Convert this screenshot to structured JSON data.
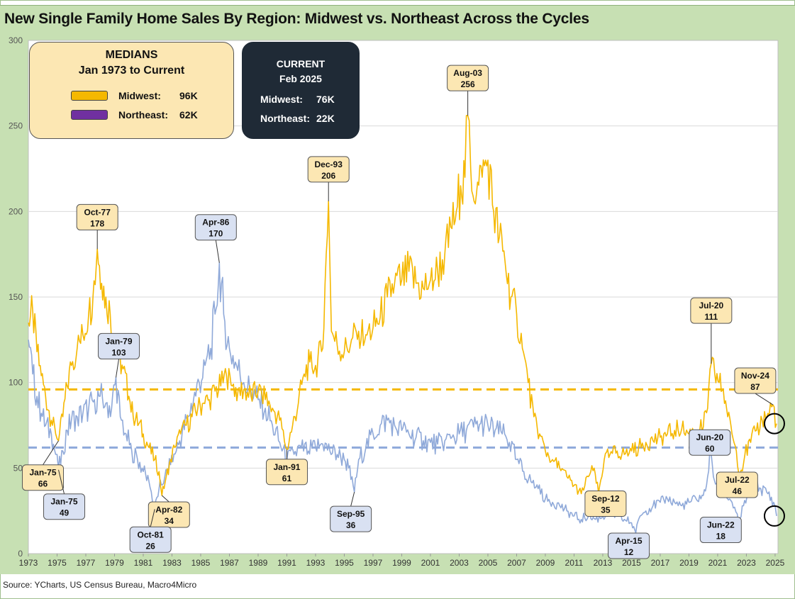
{
  "title": "New Single Family Home Sales By Region: Midwest vs. Northeast Across the Cycles",
  "source": "Source: YCharts, US Census Bureau, Macro4Micro",
  "medians_box": {
    "heading1": "MEDIANS",
    "heading2": "Jan 1973 to Current",
    "midwest_label": "Midwest:",
    "midwest_value": "96K",
    "northeast_label": "Northeast:",
    "northeast_value": "62K"
  },
  "current_box": {
    "heading1": "CURRENT",
    "heading2": "Feb 2025",
    "midwest_label": "Midwest:",
    "midwest_value": "76K",
    "northeast_label": "Northeast:",
    "northeast_value": "22K"
  },
  "colors": {
    "midwest": "#f5b800",
    "northeast": "#8fa9d9",
    "midwest_label_bg": "#fce7b3",
    "northeast_label_bg": "#d9e1f2",
    "plot_bg": "#ffffff",
    "chart_bg": "#c7e0b3",
    "grid": "#d9d9d9",
    "midwest_swatch": "#f5b800",
    "northeast_swatch": "#7030a0"
  },
  "chart_data": {
    "type": "line",
    "xlim": [
      1973,
      2025.2
    ],
    "ylim": [
      0,
      300
    ],
    "x_ticks": [
      "1973",
      "1975",
      "1977",
      "1979",
      "1981",
      "1983",
      "1985",
      "1987",
      "1989",
      "1991",
      "1993",
      "1995",
      "1997",
      "1999",
      "2001",
      "2003",
      "2005",
      "2007",
      "2009",
      "2011",
      "2013",
      "2015",
      "2017",
      "2019",
      "2021",
      "2023",
      "2025"
    ],
    "y_ticks": [
      "0",
      "50",
      "100",
      "150",
      "200",
      "250",
      "300"
    ],
    "grid": true,
    "series": [
      {
        "name": "Midwest",
        "median": 96,
        "points": [
          [
            1973.0,
            135
          ],
          [
            1973.3,
            142
          ],
          [
            1973.6,
            118
          ],
          [
            1973.9,
            104
          ],
          [
            1974.2,
            92
          ],
          [
            1974.6,
            78
          ],
          [
            1974.9,
            70
          ],
          [
            1975.1,
            66
          ],
          [
            1975.4,
            80
          ],
          [
            1975.7,
            98
          ],
          [
            1976.0,
            110
          ],
          [
            1976.4,
            120
          ],
          [
            1976.8,
            128
          ],
          [
            1977.2,
            140
          ],
          [
            1977.5,
            150
          ],
          [
            1977.8,
            178
          ],
          [
            1978.1,
            158
          ],
          [
            1978.4,
            150
          ],
          [
            1978.7,
            140
          ],
          [
            1979.0,
            125
          ],
          [
            1979.3,
            115
          ],
          [
            1979.6,
            108
          ],
          [
            1980.0,
            92
          ],
          [
            1980.3,
            80
          ],
          [
            1980.7,
            76
          ],
          [
            1981.0,
            70
          ],
          [
            1981.4,
            62
          ],
          [
            1981.8,
            55
          ],
          [
            1982.1,
            48
          ],
          [
            1982.3,
            34
          ],
          [
            1982.6,
            45
          ],
          [
            1982.9,
            55
          ],
          [
            1983.2,
            62
          ],
          [
            1983.6,
            70
          ],
          [
            1984.0,
            75
          ],
          [
            1984.4,
            80
          ],
          [
            1984.8,
            85
          ],
          [
            1985.2,
            88
          ],
          [
            1985.6,
            90
          ],
          [
            1986.0,
            95
          ],
          [
            1986.4,
            98
          ],
          [
            1986.8,
            104
          ],
          [
            1987.2,
            98
          ],
          [
            1987.6,
            95
          ],
          [
            1988.0,
            96
          ],
          [
            1988.5,
            92
          ],
          [
            1989.0,
            95
          ],
          [
            1989.5,
            90
          ],
          [
            1990.0,
            85
          ],
          [
            1990.5,
            78
          ],
          [
            1991.0,
            61
          ],
          [
            1991.4,
            75
          ],
          [
            1991.8,
            88
          ],
          [
            1992.2,
            105
          ],
          [
            1992.6,
            112
          ],
          [
            1993.0,
            110
          ],
          [
            1993.5,
            120
          ],
          [
            1993.9,
            206
          ],
          [
            1994.1,
            130
          ],
          [
            1994.5,
            122
          ],
          [
            1995.0,
            118
          ],
          [
            1995.5,
            125
          ],
          [
            1996.0,
            130
          ],
          [
            1996.5,
            128
          ],
          [
            1997.0,
            132
          ],
          [
            1997.5,
            138
          ],
          [
            1998.0,
            150
          ],
          [
            1998.5,
            158
          ],
          [
            1999.0,
            160
          ],
          [
            1999.5,
            165
          ],
          [
            2000.0,
            158
          ],
          [
            2000.5,
            155
          ],
          [
            2001.0,
            160
          ],
          [
            2001.5,
            165
          ],
          [
            2002.0,
            175
          ],
          [
            2002.5,
            190
          ],
          [
            2002.8,
            200
          ],
          [
            2003.1,
            215
          ],
          [
            2003.4,
            220
          ],
          [
            2003.6,
            256
          ],
          [
            2003.8,
            225
          ],
          [
            2004.2,
            210
          ],
          [
            2004.6,
            220
          ],
          [
            2005.0,
            230
          ],
          [
            2005.4,
            200
          ],
          [
            2005.8,
            185
          ],
          [
            2006.2,
            170
          ],
          [
            2006.6,
            150
          ],
          [
            2007.0,
            140
          ],
          [
            2007.4,
            120
          ],
          [
            2007.8,
            100
          ],
          [
            2008.2,
            80
          ],
          [
            2008.6,
            70
          ],
          [
            2009.0,
            60
          ],
          [
            2009.5,
            55
          ],
          [
            2010.0,
            50
          ],
          [
            2010.5,
            45
          ],
          [
            2011.0,
            40
          ],
          [
            2011.5,
            35
          ],
          [
            2012.0,
            45
          ],
          [
            2012.4,
            50
          ],
          [
            2012.7,
            35
          ],
          [
            2013.1,
            55
          ],
          [
            2013.5,
            58
          ],
          [
            2014.0,
            60
          ],
          [
            2014.5,
            58
          ],
          [
            2015.0,
            60
          ],
          [
            2015.5,
            62
          ],
          [
            2016.0,
            65
          ],
          [
            2016.5,
            66
          ],
          [
            2017.0,
            68
          ],
          [
            2017.5,
            70
          ],
          [
            2018.0,
            72
          ],
          [
            2018.5,
            73
          ],
          [
            2019.0,
            70
          ],
          [
            2019.5,
            72
          ],
          [
            2020.0,
            74
          ],
          [
            2020.3,
            85
          ],
          [
            2020.55,
            111
          ],
          [
            2020.8,
            105
          ],
          [
            2021.1,
            100
          ],
          [
            2021.4,
            95
          ],
          [
            2021.7,
            80
          ],
          [
            2022.0,
            70
          ],
          [
            2022.3,
            60
          ],
          [
            2022.55,
            46
          ],
          [
            2022.9,
            58
          ],
          [
            2023.3,
            65
          ],
          [
            2023.7,
            72
          ],
          [
            2024.1,
            78
          ],
          [
            2024.5,
            82
          ],
          [
            2024.85,
            87
          ],
          [
            2025.1,
            76
          ]
        ]
      },
      {
        "name": "Northeast",
        "median": 62,
        "points": [
          [
            1973.0,
            125
          ],
          [
            1973.3,
            105
          ],
          [
            1973.6,
            92
          ],
          [
            1973.9,
            82
          ],
          [
            1974.2,
            75
          ],
          [
            1974.6,
            70
          ],
          [
            1974.9,
            58
          ],
          [
            1975.1,
            49
          ],
          [
            1975.4,
            60
          ],
          [
            1975.7,
            72
          ],
          [
            1976.0,
            78
          ],
          [
            1976.4,
            80
          ],
          [
            1976.8,
            82
          ],
          [
            1977.2,
            85
          ],
          [
            1977.6,
            90
          ],
          [
            1978.0,
            92
          ],
          [
            1978.4,
            88
          ],
          [
            1978.8,
            85
          ],
          [
            1979.1,
            103
          ],
          [
            1979.4,
            80
          ],
          [
            1979.8,
            70
          ],
          [
            1980.2,
            60
          ],
          [
            1980.6,
            55
          ],
          [
            1981.0,
            48
          ],
          [
            1981.4,
            42
          ],
          [
            1981.8,
            26
          ],
          [
            1982.1,
            38
          ],
          [
            1982.5,
            45
          ],
          [
            1982.9,
            52
          ],
          [
            1983.3,
            60
          ],
          [
            1983.7,
            70
          ],
          [
            1984.1,
            80
          ],
          [
            1984.5,
            90
          ],
          [
            1984.9,
            100
          ],
          [
            1985.3,
            110
          ],
          [
            1985.7,
            120
          ],
          [
            1986.0,
            140
          ],
          [
            1986.3,
            170
          ],
          [
            1986.6,
            140
          ],
          [
            1987.0,
            120
          ],
          [
            1987.5,
            110
          ],
          [
            1988.0,
            100
          ],
          [
            1988.5,
            95
          ],
          [
            1989.0,
            90
          ],
          [
            1989.5,
            85
          ],
          [
            1990.0,
            75
          ],
          [
            1990.5,
            65
          ],
          [
            1991.0,
            55
          ],
          [
            1991.5,
            58
          ],
          [
            1992.0,
            62
          ],
          [
            1992.5,
            60
          ],
          [
            1993.0,
            62
          ],
          [
            1993.5,
            64
          ],
          [
            1994.0,
            60
          ],
          [
            1994.5,
            58
          ],
          [
            1995.0,
            55
          ],
          [
            1995.3,
            50
          ],
          [
            1995.7,
            36
          ],
          [
            1996.0,
            55
          ],
          [
            1996.5,
            62
          ],
          [
            1997.0,
            70
          ],
          [
            1997.5,
            75
          ],
          [
            1998.0,
            78
          ],
          [
            1998.5,
            75
          ],
          [
            1999.0,
            72
          ],
          [
            1999.5,
            70
          ],
          [
            2000.0,
            68
          ],
          [
            2000.5,
            66
          ],
          [
            2001.0,
            65
          ],
          [
            2001.5,
            64
          ],
          [
            2002.0,
            66
          ],
          [
            2002.5,
            68
          ],
          [
            2003.0,
            70
          ],
          [
            2003.5,
            72
          ],
          [
            2004.0,
            74
          ],
          [
            2004.5,
            76
          ],
          [
            2005.0,
            75
          ],
          [
            2005.5,
            72
          ],
          [
            2006.0,
            70
          ],
          [
            2006.5,
            65
          ],
          [
            2007.0,
            55
          ],
          [
            2007.5,
            48
          ],
          [
            2008.0,
            42
          ],
          [
            2008.5,
            38
          ],
          [
            2009.0,
            32
          ],
          [
            2009.5,
            30
          ],
          [
            2010.0,
            28
          ],
          [
            2010.5,
            25
          ],
          [
            2011.0,
            22
          ],
          [
            2011.5,
            20
          ],
          [
            2012.0,
            22
          ],
          [
            2012.5,
            20
          ],
          [
            2013.0,
            22
          ],
          [
            2013.5,
            24
          ],
          [
            2014.0,
            22
          ],
          [
            2014.5,
            20
          ],
          [
            2015.0,
            18
          ],
          [
            2015.3,
            12
          ],
          [
            2015.6,
            22
          ],
          [
            2016.0,
            25
          ],
          [
            2016.5,
            28
          ],
          [
            2017.0,
            30
          ],
          [
            2017.5,
            32
          ],
          [
            2018.0,
            30
          ],
          [
            2018.5,
            28
          ],
          [
            2019.0,
            30
          ],
          [
            2019.5,
            32
          ],
          [
            2020.0,
            34
          ],
          [
            2020.3,
            45
          ],
          [
            2020.45,
            60
          ],
          [
            2020.7,
            45
          ],
          [
            2021.0,
            40
          ],
          [
            2021.5,
            35
          ],
          [
            2022.0,
            30
          ],
          [
            2022.45,
            18
          ],
          [
            2022.8,
            28
          ],
          [
            2023.2,
            35
          ],
          [
            2023.6,
            40
          ],
          [
            2024.0,
            38
          ],
          [
            2024.5,
            35
          ],
          [
            2024.9,
            30
          ],
          [
            2025.1,
            22
          ]
        ]
      }
    ],
    "annotations": [
      {
        "series": "Midwest",
        "label": "Oct-77",
        "value": "178",
        "x": 1977.8,
        "y": 178
      },
      {
        "series": "Midwest",
        "label": "Dec-93",
        "value": "206",
        "x": 1993.9,
        "y": 206
      },
      {
        "series": "Midwest",
        "label": "Aug-03",
        "value": "256",
        "x": 2003.6,
        "y": 256
      },
      {
        "series": "Midwest",
        "label": "Jul-20",
        "value": "111",
        "x": 2020.55,
        "y": 111
      },
      {
        "series": "Midwest",
        "label": "Nov-24",
        "value": "87",
        "x": 2024.85,
        "y": 87
      },
      {
        "series": "Midwest",
        "label": "Jan-75",
        "value": "66",
        "x": 1975.1,
        "y": 66
      },
      {
        "series": "Midwest",
        "label": "Apr-82",
        "value": "34",
        "x": 1982.3,
        "y": 34
      },
      {
        "series": "Midwest",
        "label": "Jan-91",
        "value": "61",
        "x": 1991.0,
        "y": 61
      },
      {
        "series": "Midwest",
        "label": "Sep-12",
        "value": "35",
        "x": 2012.7,
        "y": 35
      },
      {
        "series": "Midwest",
        "label": "Jul-22",
        "value": "46",
        "x": 2022.55,
        "y": 46
      },
      {
        "series": "Northeast",
        "label": "Apr-86",
        "value": "170",
        "x": 1986.3,
        "y": 170
      },
      {
        "series": "Northeast",
        "label": "Jan-79",
        "value": "103",
        "x": 1979.1,
        "y": 103
      },
      {
        "series": "Northeast",
        "label": "Jan-75",
        "value": "49",
        "x": 1975.1,
        "y": 49
      },
      {
        "series": "Northeast",
        "label": "Oct-81",
        "value": "26",
        "x": 1981.8,
        "y": 26
      },
      {
        "series": "Northeast",
        "label": "Sep-95",
        "value": "36",
        "x": 1995.7,
        "y": 36
      },
      {
        "series": "Northeast",
        "label": "Apr-15",
        "value": "12",
        "x": 2015.3,
        "y": 12
      },
      {
        "series": "Northeast",
        "label": "Jun-20",
        "value": "60",
        "x": 2020.45,
        "y": 60
      },
      {
        "series": "Northeast",
        "label": "Jun-22",
        "value": "18",
        "x": 2022.45,
        "y": 18
      }
    ]
  }
}
